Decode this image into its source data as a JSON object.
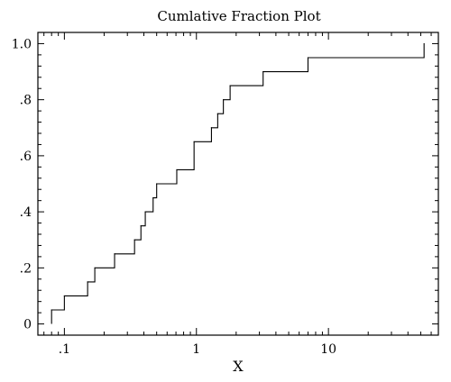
{
  "chart_data": {
    "type": "line",
    "title": "Cumlative Fraction Plot",
    "xlabel": "X",
    "ylabel": "",
    "x_scale": "log",
    "xlim": [
      0.063,
      68
    ],
    "ylim": [
      -0.04,
      1.04
    ],
    "grid": false,
    "x_ticks": [
      {
        "value": 0.1,
        "label": ".1"
      },
      {
        "value": 1,
        "label": "1"
      },
      {
        "value": 10,
        "label": "10"
      }
    ],
    "y_ticks": [
      {
        "value": 0,
        "label": "0"
      },
      {
        "value": 0.2,
        "label": ".2"
      },
      {
        "value": 0.4,
        "label": ".4"
      },
      {
        "value": 0.6,
        "label": ".6"
      },
      {
        "value": 0.8,
        "label": ".8"
      },
      {
        "value": 1.0,
        "label": "1.0"
      }
    ],
    "series": [
      {
        "x": [
          0.08,
          0.1,
          0.15,
          0.17,
          0.24,
          0.34,
          0.38,
          0.41,
          0.47,
          0.5,
          0.71,
          0.96,
          1.3,
          1.45,
          1.6,
          1.8,
          3.2,
          7.0,
          53.0
        ],
        "y": [
          0.05,
          0.1,
          0.15,
          0.2,
          0.25,
          0.3,
          0.35,
          0.4,
          0.45,
          0.5,
          0.55,
          0.65,
          0.7,
          0.75,
          0.8,
          0.85,
          0.9,
          0.95,
          1.0
        ]
      }
    ]
  }
}
